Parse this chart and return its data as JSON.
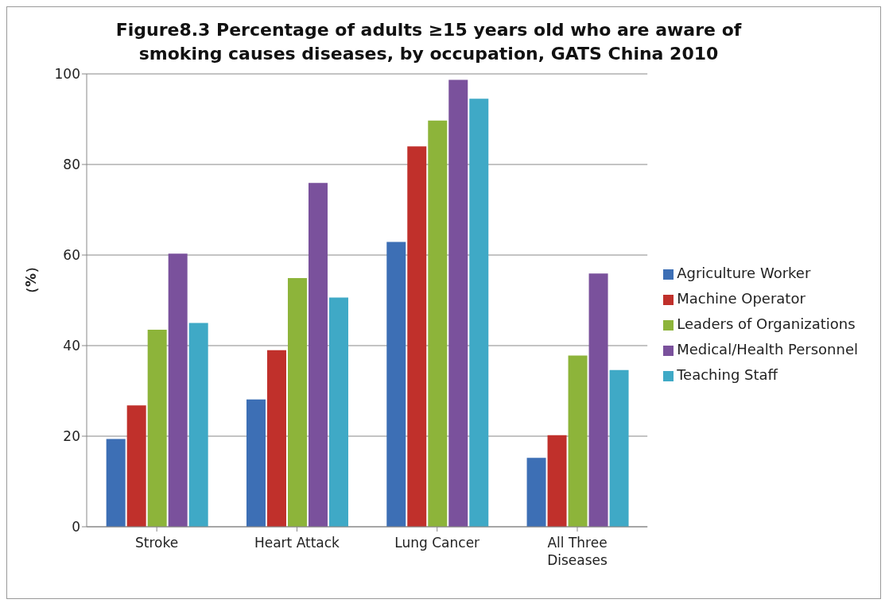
{
  "chart_data": {
    "type": "bar",
    "title": "Figure8.3  Percentage of adults ≥15 years old who are aware of smoking causes diseases, by occupation, GATS China 2010",
    "ylabel": "（%）",
    "categories": [
      "Stroke",
      "Heart Attack",
      "Lung Cancer",
      "All Three Diseases"
    ],
    "series": [
      {
        "name": "Agriculture Worker",
        "color": "#3d6fb5",
        "values": [
          19.4,
          28.1,
          62.9,
          15.2
        ]
      },
      {
        "name": "Machine Operator",
        "color": "#c0302b",
        "values": [
          26.8,
          39,
          84,
          20.2
        ]
      },
      {
        "name": "Leaders of Organizations",
        "color": "#8db43a",
        "values": [
          43.5,
          54.9,
          89.7,
          37.8
        ]
      },
      {
        "name": "Medical/Health Personnel",
        "color": "#7a519c",
        "values": [
          60.3,
          75.9,
          98.7,
          55.9
        ]
      },
      {
        "name": "Teaching Staff",
        "color": "#3fa9c6",
        "values": [
          45,
          50.6,
          94.5,
          34.6
        ]
      }
    ],
    "ylim": [
      0,
      100
    ],
    "yticks": [
      0,
      20,
      40,
      60,
      80,
      100
    ],
    "grid": "y",
    "legend": "right"
  }
}
